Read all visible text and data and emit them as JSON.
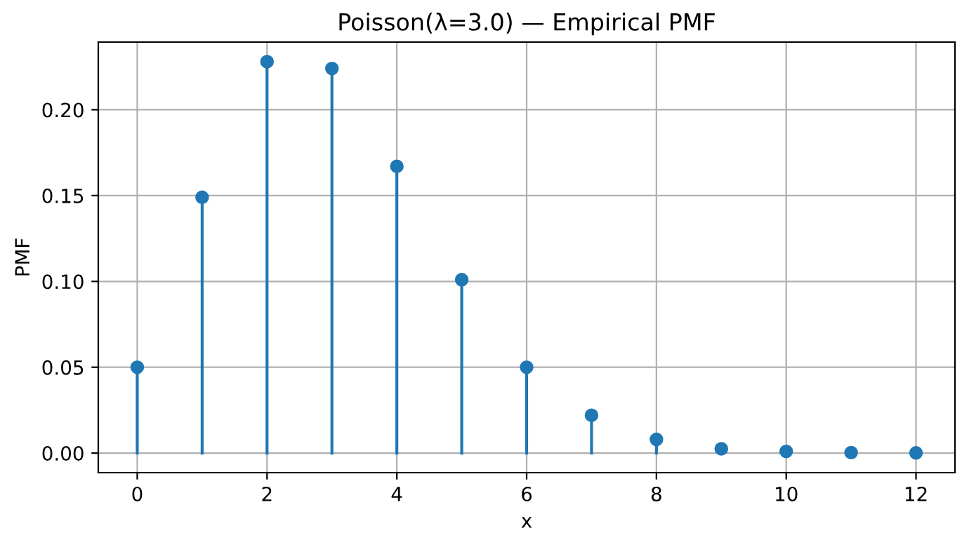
{
  "chart_data": {
    "type": "lollipop",
    "title": "Poisson(λ=3.0) — Empirical PMF",
    "xlabel": "x",
    "ylabel": "PMF",
    "x": [
      0,
      1,
      2,
      3,
      4,
      5,
      6,
      7,
      8,
      9,
      10,
      11,
      12
    ],
    "series": [
      {
        "color": "#1f77b4",
        "values": [
          0.05,
          0.149,
          0.228,
          0.224,
          0.167,
          0.101,
          0.05,
          0.022,
          0.008,
          0.0025,
          0.001,
          0.0003,
          0.0001
        ]
      }
    ],
    "xlim": [
      -0.6,
      12.6
    ],
    "xticks": [
      0,
      2,
      4,
      6,
      8,
      10,
      12
    ],
    "ylim": [
      -0.0114,
      0.2394
    ],
    "yticks": [
      {
        "value": 0,
        "label": "0.00"
      },
      {
        "value": 0.05,
        "label": "0.05"
      },
      {
        "value": 0.1,
        "label": "0.10"
      },
      {
        "value": 0.15,
        "label": "0.15"
      },
      {
        "value": 0.2,
        "label": "0.20"
      }
    ],
    "grid": true,
    "marker": "circle"
  }
}
